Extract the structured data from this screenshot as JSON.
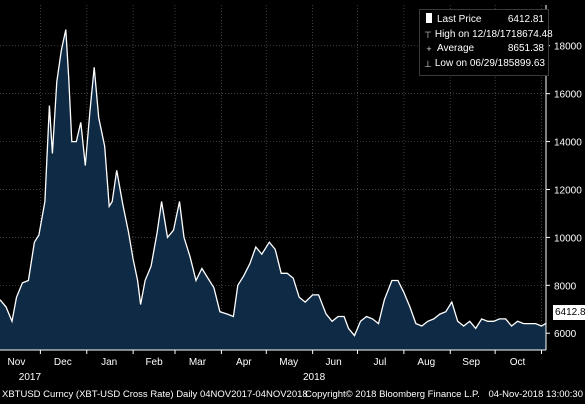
{
  "legend": {
    "last_price_label": "Last Price",
    "last_price_value": "6412.81",
    "high_label": "High on 12/18/17",
    "high_value": "18674.48",
    "average_label": "Average",
    "average_value": "8651.38",
    "low_label": "Low on 06/29/18",
    "low_value": "5899.63",
    "icons": {
      "last": "square-swatch-icon",
      "high": "high-marker-icon",
      "average": "average-marker-icon",
      "low": "low-marker-icon"
    }
  },
  "last_price_tag": "6412.81",
  "footer": {
    "left": "XBTUSD Curncy (XBT-USD Cross Rate)  Daily 04NOV2017-04NOV2018",
    "center": "Copyright© 2018 Bloomberg Finance L.P.",
    "right": "04-Nov-2018 13:00:30"
  },
  "colors": {
    "background": "#000000",
    "area_fill": "#0f2a44",
    "line": "#ffffff",
    "grid": "#555555"
  },
  "chart_data": {
    "type": "area",
    "title": "",
    "xlabel": "",
    "ylabel": "",
    "ylim": [
      5300,
      19700
    ],
    "y_ticks": [
      6000,
      8000,
      10000,
      12000,
      14000,
      16000,
      18000
    ],
    "y_tick_labels": [
      "6000",
      "8000",
      "10000",
      "12000",
      "14000",
      "16000",
      "18000"
    ],
    "y_axis_side": "right",
    "x_range": [
      "2017-11-04",
      "2018-11-04"
    ],
    "month_labels": [
      {
        "date": "2017-11-15",
        "label": "Nov"
      },
      {
        "date": "2017-12-16",
        "label": "Dec"
      },
      {
        "date": "2018-01-16",
        "label": "Jan"
      },
      {
        "date": "2018-02-15",
        "label": "Feb"
      },
      {
        "date": "2018-03-16",
        "label": "Mar"
      },
      {
        "date": "2018-04-16",
        "label": "Apr"
      },
      {
        "date": "2018-05-16",
        "label": "May"
      },
      {
        "date": "2018-06-15",
        "label": "Jun"
      },
      {
        "date": "2018-07-16",
        "label": "Jul"
      },
      {
        "date": "2018-08-16",
        "label": "Aug"
      },
      {
        "date": "2018-09-15",
        "label": "Sep"
      },
      {
        "date": "2018-10-16",
        "label": "Oct"
      }
    ],
    "month_boundaries": [
      "2017-12-01",
      "2018-01-01",
      "2018-02-01",
      "2018-03-01",
      "2018-04-01",
      "2018-05-01",
      "2018-06-01",
      "2018-07-01",
      "2018-08-01",
      "2018-09-01",
      "2018-10-01",
      "2018-11-01"
    ],
    "year_labels": [
      {
        "date": "2017-11-24",
        "label": "2017"
      },
      {
        "date": "2018-06-02",
        "label": "2018"
      }
    ],
    "grid": true,
    "legend_position": "top-right",
    "series": [
      {
        "name": "Last Price",
        "x": [
          "2017-11-04",
          "2017-11-08",
          "2017-11-12",
          "2017-11-15",
          "2017-11-19",
          "2017-11-23",
          "2017-11-27",
          "2017-11-30",
          "2017-12-04",
          "2017-12-07",
          "2017-12-09",
          "2017-12-12",
          "2017-12-15",
          "2017-12-18",
          "2017-12-20",
          "2017-12-22",
          "2017-12-25",
          "2017-12-28",
          "2017-12-31",
          "2018-01-03",
          "2018-01-06",
          "2018-01-09",
          "2018-01-13",
          "2018-01-16",
          "2018-01-18",
          "2018-01-21",
          "2018-01-25",
          "2018-01-29",
          "2018-02-01",
          "2018-02-04",
          "2018-02-06",
          "2018-02-09",
          "2018-02-13",
          "2018-02-17",
          "2018-02-20",
          "2018-02-24",
          "2018-02-28",
          "2018-03-04",
          "2018-03-07",
          "2018-03-11",
          "2018-03-15",
          "2018-03-19",
          "2018-03-23",
          "2018-03-27",
          "2018-03-31",
          "2018-04-05",
          "2018-04-09",
          "2018-04-12",
          "2018-04-16",
          "2018-04-20",
          "2018-04-24",
          "2018-04-28",
          "2018-05-03",
          "2018-05-07",
          "2018-05-11",
          "2018-05-15",
          "2018-05-19",
          "2018-05-23",
          "2018-05-27",
          "2018-06-01",
          "2018-06-05",
          "2018-06-10",
          "2018-06-14",
          "2018-06-18",
          "2018-06-22",
          "2018-06-25",
          "2018-06-29",
          "2018-07-03",
          "2018-07-07",
          "2018-07-11",
          "2018-07-15",
          "2018-07-19",
          "2018-07-24",
          "2018-07-28",
          "2018-08-01",
          "2018-08-05",
          "2018-08-09",
          "2018-08-13",
          "2018-08-17",
          "2018-08-21",
          "2018-08-25",
          "2018-08-29",
          "2018-09-02",
          "2018-09-06",
          "2018-09-10",
          "2018-09-14",
          "2018-09-18",
          "2018-09-22",
          "2018-09-26",
          "2018-09-30",
          "2018-10-04",
          "2018-10-08",
          "2018-10-12",
          "2018-10-16",
          "2018-10-20",
          "2018-10-24",
          "2018-10-28",
          "2018-11-01",
          "2018-11-04"
        ],
        "values": [
          7400,
          7100,
          6500,
          7500,
          8100,
          8200,
          9800,
          10100,
          11500,
          15500,
          13500,
          16500,
          17800,
          18674,
          16600,
          14000,
          14000,
          14800,
          13000,
          15200,
          17100,
          15000,
          13800,
          11300,
          11500,
          12800,
          11400,
          10200,
          9100,
          8200,
          7200,
          8200,
          8800,
          10200,
          11500,
          10000,
          10300,
          11500,
          10000,
          9200,
          8200,
          8700,
          8300,
          7900,
          6900,
          6800,
          6700,
          8000,
          8400,
          8900,
          9600,
          9300,
          9800,
          9500,
          8500,
          8500,
          8300,
          7500,
          7300,
          7600,
          7600,
          6800,
          6500,
          6700,
          6700,
          6200,
          5900,
          6500,
          6700,
          6600,
          6400,
          7400,
          8200,
          8200,
          7700,
          7100,
          6400,
          6300,
          6500,
          6600,
          6800,
          6900,
          7300,
          6500,
          6300,
          6500,
          6200,
          6600,
          6500,
          6500,
          6600,
          6600,
          6300,
          6500,
          6400,
          6400,
          6400,
          6300,
          6412.81
        ]
      }
    ],
    "reference_values": {
      "high": 18674.48,
      "high_date": "2017-12-18",
      "average": 8651.38,
      "low": 5899.63,
      "low_date": "2018-06-29",
      "last": 6412.81
    }
  }
}
